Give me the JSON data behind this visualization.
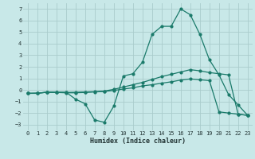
{
  "xlabel": "Humidex (Indice chaleur)",
  "background_color": "#c8e8e8",
  "grid_color": "#aacccc",
  "line_color": "#1a7a6a",
  "xlim": [
    -0.5,
    23.5
  ],
  "ylim": [
    -3.5,
    7.5
  ],
  "xticks": [
    0,
    1,
    2,
    3,
    4,
    5,
    6,
    7,
    8,
    9,
    10,
    11,
    12,
    13,
    14,
    15,
    16,
    17,
    18,
    19,
    20,
    21,
    22,
    23
  ],
  "yticks": [
    -3,
    -2,
    -1,
    0,
    1,
    2,
    3,
    4,
    5,
    6,
    7
  ],
  "curve1_x": [
    0,
    1,
    2,
    3,
    4,
    5,
    6,
    7,
    8,
    9,
    10,
    11,
    12,
    13,
    14,
    15,
    16,
    17,
    18,
    19,
    20,
    21,
    22,
    23
  ],
  "curve1_y": [
    -0.3,
    -0.3,
    -0.2,
    -0.2,
    -0.2,
    -0.8,
    -1.2,
    -2.6,
    -2.8,
    -1.4,
    1.2,
    1.4,
    2.4,
    4.8,
    5.5,
    5.5,
    7.0,
    6.5,
    4.8,
    2.6,
    1.3,
    -0.4,
    -1.3,
    -2.2
  ],
  "curve2_x": [
    0,
    1,
    2,
    3,
    4,
    5,
    6,
    7,
    8,
    9,
    10,
    11,
    12,
    13,
    14,
    15,
    16,
    17,
    18,
    19,
    20,
    21,
    22,
    23
  ],
  "curve2_y": [
    -0.3,
    -0.28,
    -0.2,
    -0.22,
    -0.22,
    -0.2,
    -0.18,
    -0.15,
    -0.1,
    0.05,
    0.25,
    0.45,
    0.65,
    0.9,
    1.15,
    1.35,
    1.55,
    1.75,
    1.65,
    1.5,
    1.4,
    1.3,
    -2.1,
    -2.2
  ],
  "curve3_x": [
    0,
    1,
    2,
    3,
    4,
    5,
    6,
    7,
    8,
    9,
    10,
    11,
    12,
    13,
    14,
    15,
    16,
    17,
    18,
    19,
    20,
    21,
    22,
    23
  ],
  "curve3_y": [
    -0.3,
    -0.28,
    -0.2,
    -0.22,
    -0.25,
    -0.25,
    -0.22,
    -0.18,
    -0.13,
    -0.05,
    0.08,
    0.18,
    0.35,
    0.45,
    0.58,
    0.7,
    0.85,
    0.95,
    0.88,
    0.8,
    -1.9,
    -2.0,
    -2.1,
    -2.2
  ]
}
